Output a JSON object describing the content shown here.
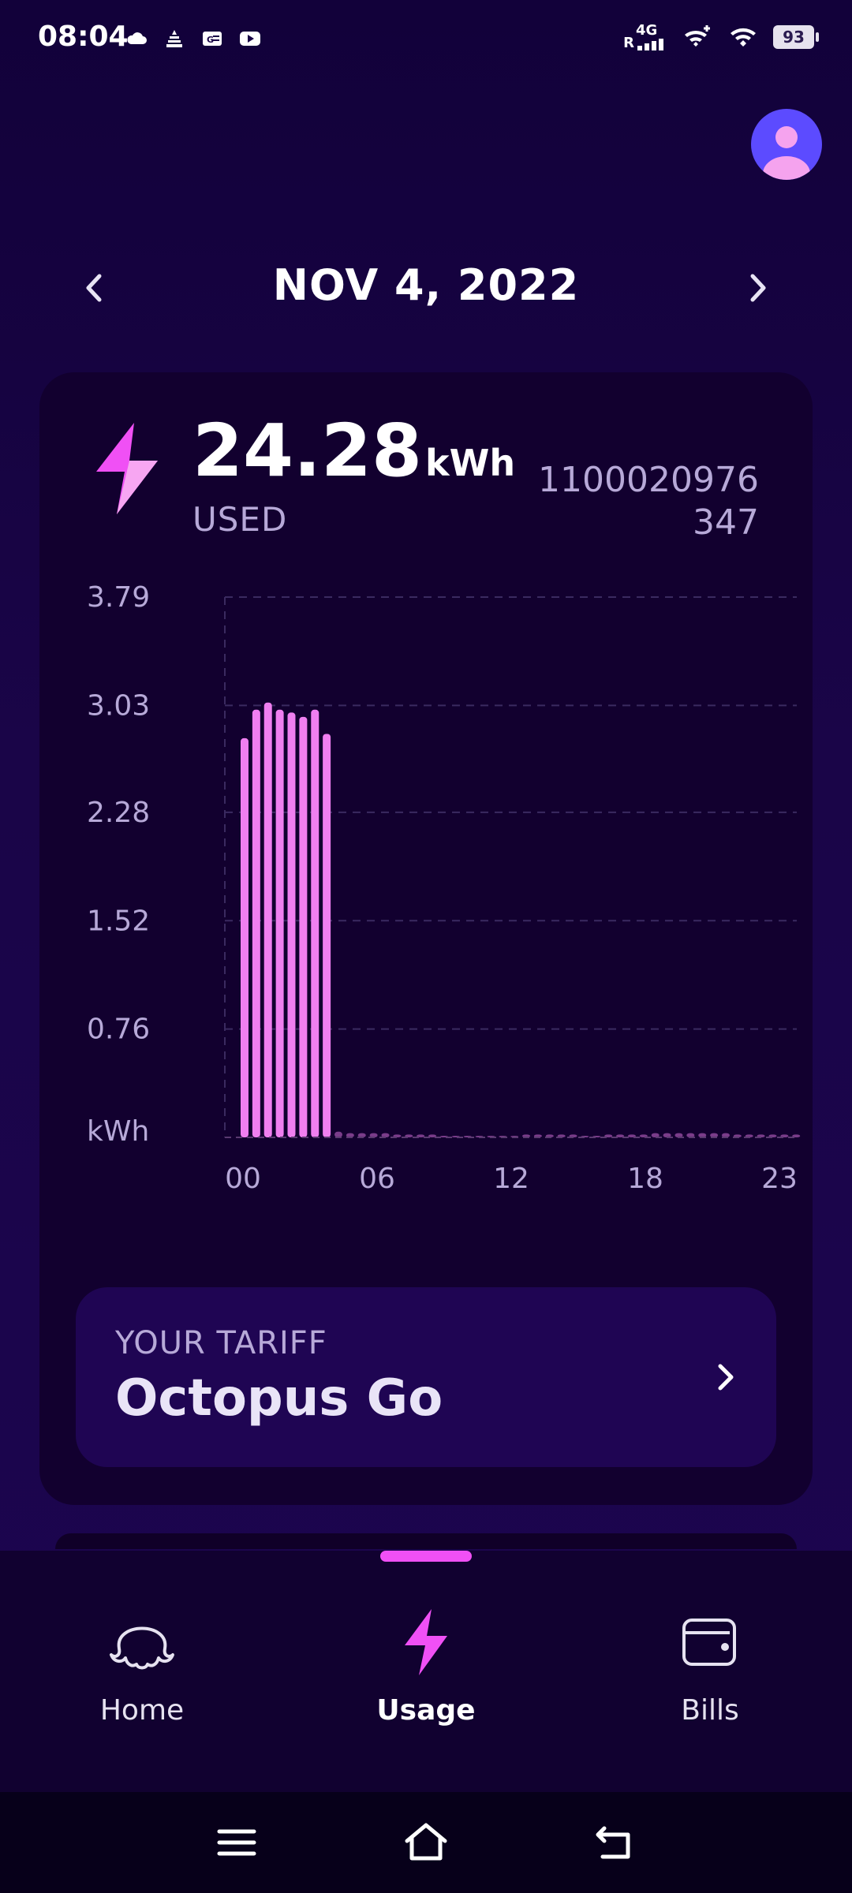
{
  "status_bar": {
    "time": "08:04",
    "network": "4G",
    "roaming": "R",
    "battery": "93"
  },
  "date_nav": {
    "date": "NOV 4, 2022"
  },
  "usage": {
    "value": "24.28",
    "unit": "kWh",
    "label": "USED",
    "meter_line1": "1100020976",
    "meter_line2": "347"
  },
  "chart_data": {
    "type": "bar",
    "title": "",
    "xlabel": "",
    "ylabel": "kWh",
    "y_ticks": [
      "3.79",
      "3.03",
      "2.28",
      "1.52",
      "0.76"
    ],
    "y_unit_label": "kWh",
    "x_ticks": [
      "00",
      "06",
      "12",
      "18",
      "23"
    ],
    "ylim": [
      0,
      3.79
    ],
    "grid": true,
    "bar_color": "#f07ff0",
    "slots": 48,
    "values": [
      2.8,
      3.0,
      3.05,
      3.0,
      2.98,
      2.95,
      3.0,
      2.83,
      0.04,
      0.03,
      0.03,
      0.03,
      0.03,
      0.02,
      0.02,
      0.02,
      0.02,
      0.01,
      0.01,
      0.01,
      0.01,
      0.01,
      0.01,
      0.01,
      0.02,
      0.02,
      0.02,
      0.02,
      0.02,
      0.01,
      0.01,
      0.02,
      0.02,
      0.02,
      0.02,
      0.03,
      0.03,
      0.03,
      0.03,
      0.03,
      0.03,
      0.03,
      0.02,
      0.02,
      0.02,
      0.02,
      0.02,
      0.02
    ]
  },
  "tariff": {
    "label": "YOUR TARIFF",
    "name": "Octopus Go"
  },
  "bottom_nav": {
    "items": [
      {
        "label": "Home",
        "icon": "octopus-icon"
      },
      {
        "label": "Usage",
        "icon": "lightning-icon",
        "active": true
      },
      {
        "label": "Bills",
        "icon": "wallet-icon"
      }
    ]
  },
  "colors": {
    "background": "#180446",
    "card": "#12002f",
    "accent": "#f050f5",
    "bars": "#f07ff0",
    "muted_text": "#b7a9d8",
    "avatar": "#5c4bff"
  }
}
